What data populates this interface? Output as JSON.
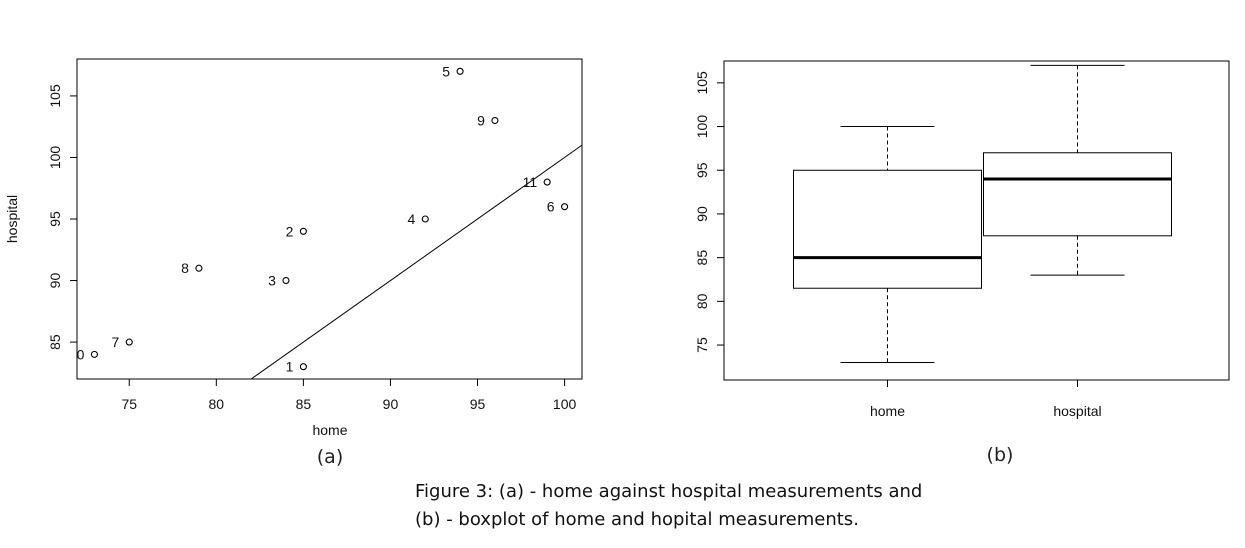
{
  "chart_data": [
    {
      "type": "scatter",
      "panel_label": "(a)",
      "xlabel": "home",
      "ylabel": "hospital",
      "xlim": [
        72,
        101
      ],
      "ylim": [
        82,
        108
      ],
      "xticks": [
        75,
        80,
        85,
        90,
        95,
        100
      ],
      "yticks": [
        85,
        90,
        95,
        100,
        105
      ],
      "grid": false,
      "points": [
        {
          "label": "0",
          "x": 73,
          "y": 84
        },
        {
          "label": "1",
          "x": 85,
          "y": 83
        },
        {
          "label": "2",
          "x": 85,
          "y": 94
        },
        {
          "label": "3",
          "x": 84,
          "y": 90
        },
        {
          "label": "4",
          "x": 92,
          "y": 95
        },
        {
          "label": "5",
          "x": 94,
          "y": 107
        },
        {
          "label": "6",
          "x": 100,
          "y": 96
        },
        {
          "label": "7",
          "x": 75,
          "y": 85
        },
        {
          "label": "8",
          "x": 79,
          "y": 91
        },
        {
          "label": "9",
          "x": 96,
          "y": 103
        },
        {
          "label": "11",
          "x": 99,
          "y": 98
        }
      ],
      "reference_line": {
        "from": [
          82,
          82
        ],
        "to": [
          101,
          101
        ]
      }
    },
    {
      "type": "box",
      "panel_label": "(b)",
      "categories": [
        "home",
        "hospital"
      ],
      "ylim": [
        71,
        107.5
      ],
      "yticks": [
        75,
        80,
        85,
        90,
        95,
        100,
        105
      ],
      "grid": false,
      "boxes": [
        {
          "name": "home",
          "min": 73,
          "q1": 81.5,
          "median": 85,
          "q3": 95,
          "max": 100
        },
        {
          "name": "hospital",
          "min": 83,
          "q1": 87.5,
          "median": 94,
          "q3": 97,
          "max": 107
        }
      ]
    }
  ],
  "caption": {
    "line1": "Figure 3: (a) - home against hospital measurements and",
    "line2": "(b) - boxplot of home and hopital measurements."
  }
}
